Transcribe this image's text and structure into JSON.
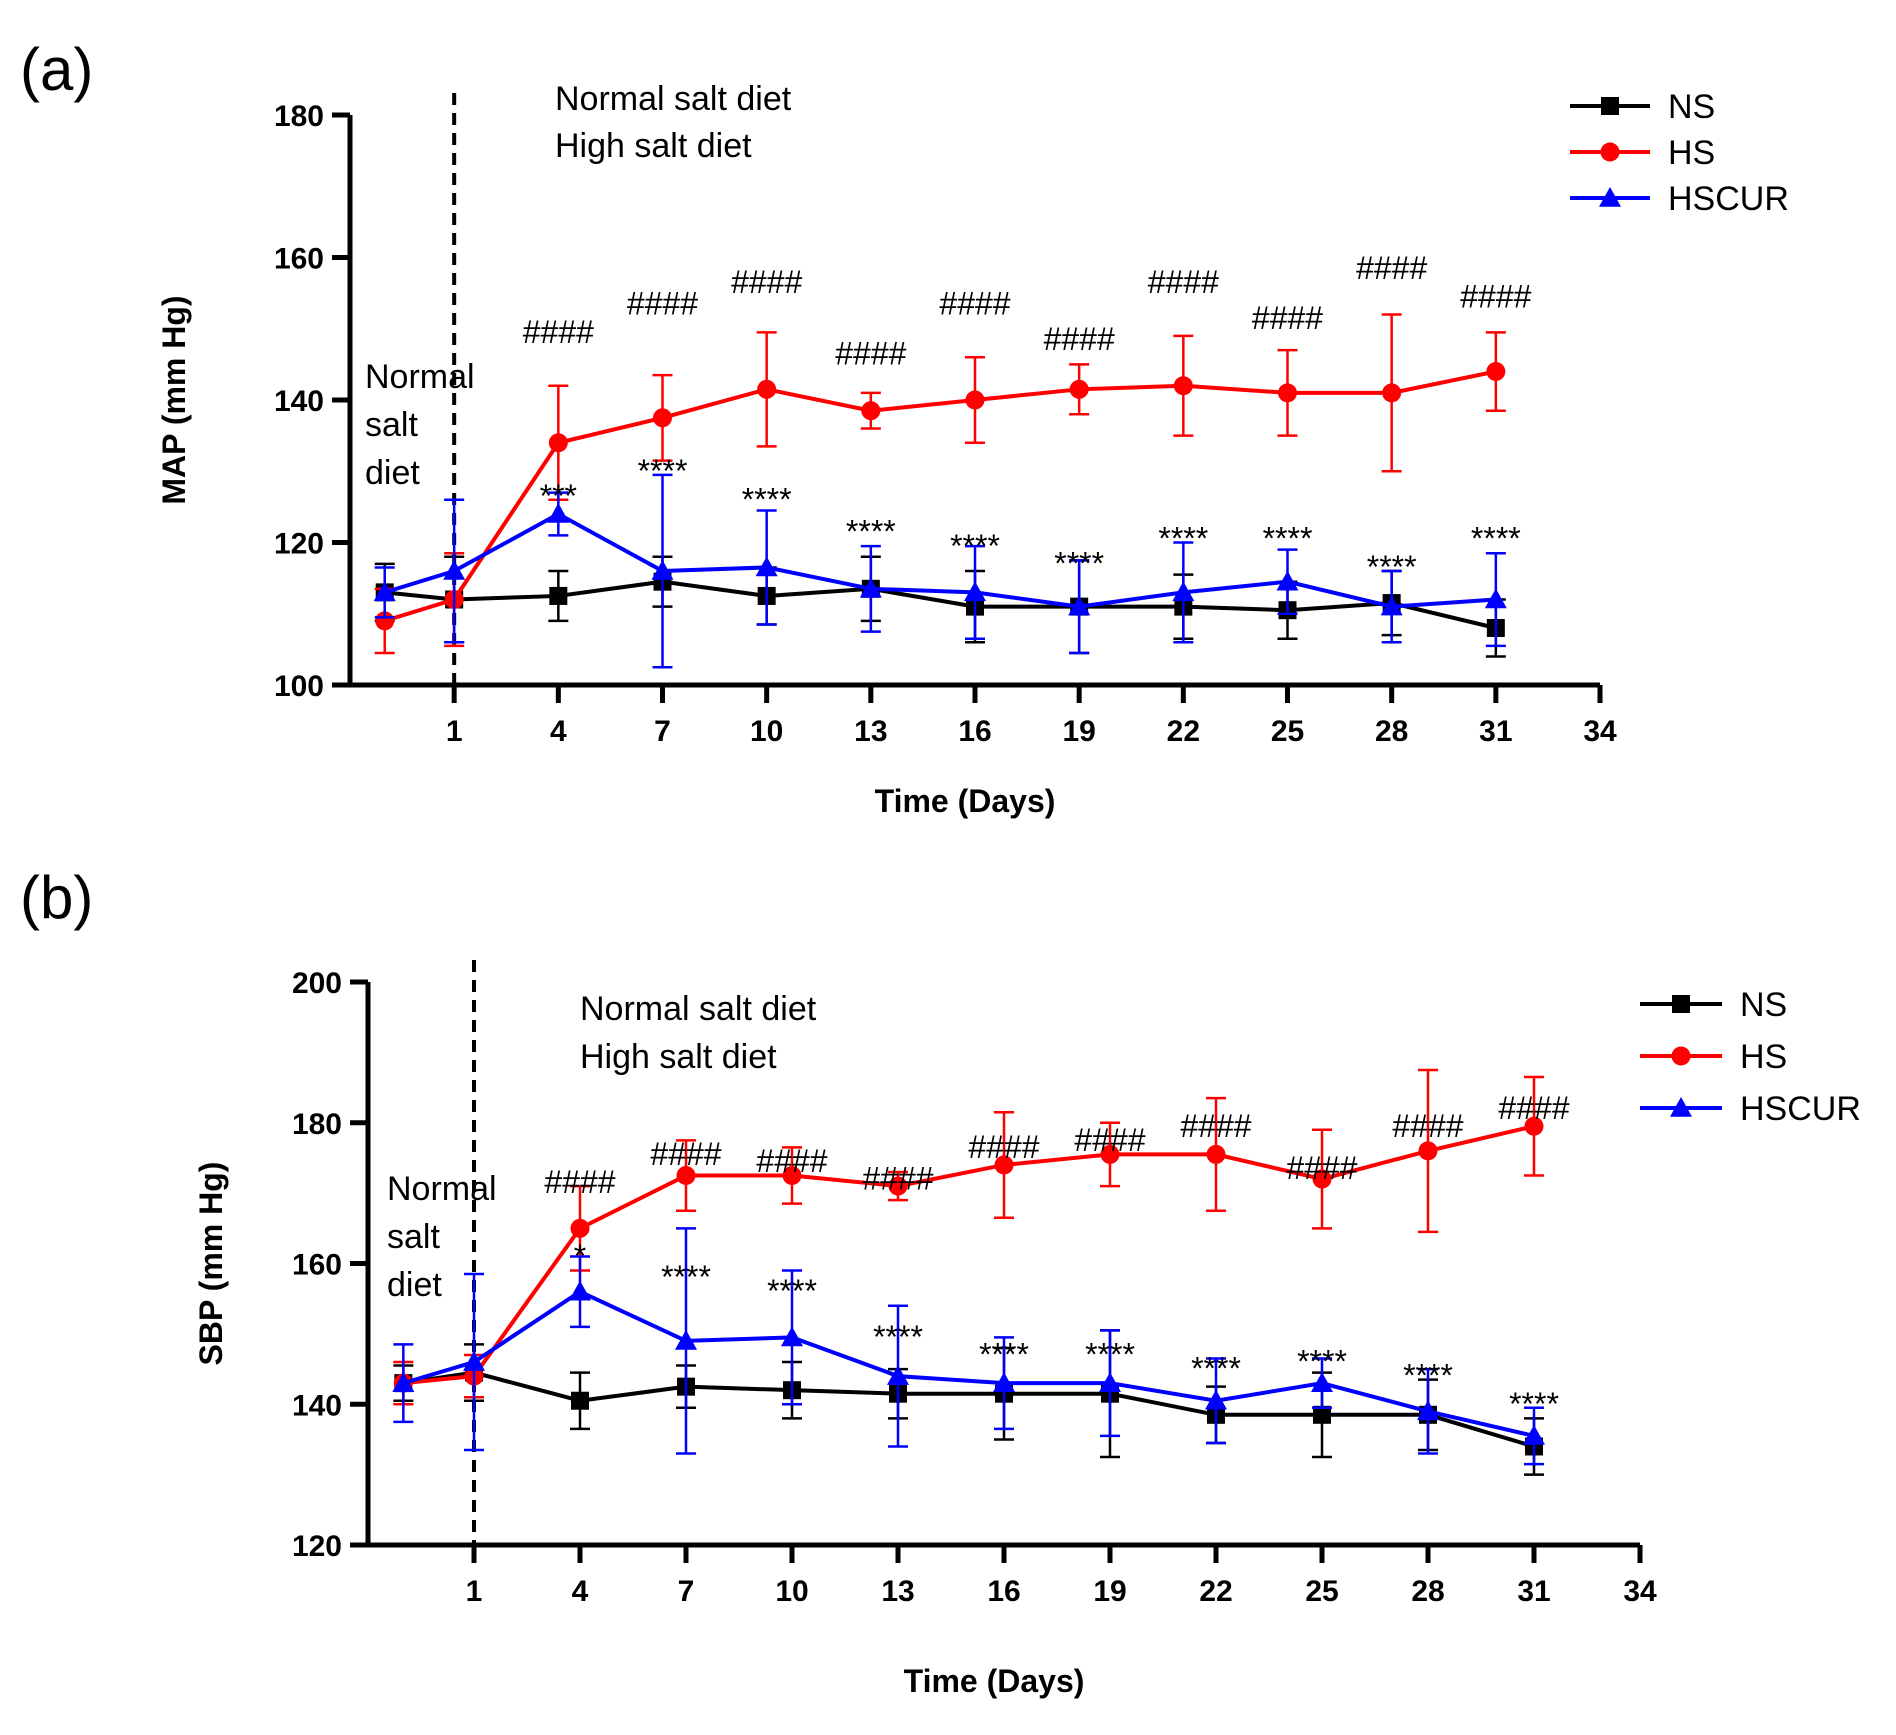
{
  "chart_data": [
    {
      "panel_label": "(a)",
      "type": "line",
      "title": "",
      "xlabel": "Time (Days)",
      "ylabel": "MAP (mm Hg)",
      "xlim": [
        -2,
        34
      ],
      "ylim": [
        100,
        180
      ],
      "xticks": [
        1,
        4,
        7,
        10,
        13,
        16,
        19,
        22,
        25,
        28,
        31,
        34
      ],
      "yticks": [
        100,
        120,
        140,
        160,
        180
      ],
      "vline_x": 1,
      "annotations": {
        "right": [
          "Normal salt diet",
          "High salt diet"
        ],
        "left": [
          "Normal",
          "salt",
          "diet"
        ]
      },
      "legend_position": "top-right",
      "x": [
        -1,
        1,
        4,
        7,
        10,
        13,
        16,
        19,
        22,
        25,
        28,
        31
      ],
      "series": [
        {
          "name": "NS",
          "color": "#000000",
          "marker": "square",
          "values": [
            113,
            112,
            112.5,
            114.5,
            112.5,
            113.5,
            111,
            111,
            111,
            110.5,
            111.5,
            108
          ],
          "errors": [
            4,
            6,
            3.5,
            3.5,
            4,
            4.5,
            5,
            6.5,
            4.5,
            4,
            4.5,
            4
          ]
        },
        {
          "name": "HS",
          "color": "#ff0000",
          "marker": "circle",
          "values": [
            109,
            112,
            134,
            137.5,
            141.5,
            138.5,
            140,
            141.5,
            142,
            141,
            141,
            144
          ],
          "errors": [
            4.5,
            6.5,
            8,
            6,
            8,
            2.5,
            6,
            3.5,
            7,
            6,
            11,
            5.5
          ]
        },
        {
          "name": "HSCUR",
          "color": "#0000ff",
          "marker": "triangle",
          "values": [
            113,
            116,
            124,
            116,
            116.5,
            113.5,
            113,
            111,
            113,
            114.5,
            111,
            112
          ],
          "errors": [
            3.5,
            10,
            3,
            13.5,
            8,
            6,
            6.5,
            6.5,
            7,
            4.5,
            5,
            6.5
          ]
        }
      ],
      "hs_sig": {
        "label": "####",
        "x": [
          4,
          7,
          10,
          13,
          16,
          19,
          22,
          25,
          28,
          31
        ],
        "y": [
          148,
          152,
          155,
          145,
          152,
          147,
          155,
          150,
          157,
          153
        ]
      },
      "hscur_sig": {
        "x": [
          4,
          7,
          10,
          13,
          16,
          19,
          22,
          25,
          28,
          31
        ],
        "labels": [
          "***",
          "****",
          "****",
          "****",
          "****",
          "****",
          "****",
          "****",
          "****",
          "****"
        ],
        "y": [
          125,
          128.5,
          124.5,
          120,
          118,
          115.5,
          119,
          119,
          115,
          119
        ]
      }
    },
    {
      "panel_label": "(b)",
      "type": "line",
      "title": "",
      "xlabel": "Time (Days)",
      "ylabel": "SBP (mm Hg)",
      "xlim": [
        -2,
        34
      ],
      "ylim": [
        120,
        200
      ],
      "xticks": [
        1,
        4,
        7,
        10,
        13,
        16,
        19,
        22,
        25,
        28,
        31,
        34
      ],
      "yticks": [
        120,
        140,
        160,
        180,
        200
      ],
      "vline_x": 1,
      "annotations": {
        "right": [
          "Normal salt diet",
          "High salt diet"
        ],
        "left": [
          "Normal",
          "salt",
          "diet"
        ]
      },
      "legend_position": "top-right",
      "x": [
        -1,
        1,
        4,
        7,
        10,
        13,
        16,
        19,
        22,
        25,
        28,
        31
      ],
      "series": [
        {
          "name": "NS",
          "color": "#000000",
          "marker": "square",
          "values": [
            143,
            144.5,
            140.5,
            142.5,
            142,
            141.5,
            141.5,
            141.5,
            138.5,
            138.5,
            138.5,
            134
          ],
          "errors": [
            2.5,
            4,
            4,
            3,
            4,
            3.5,
            6.5,
            9,
            4,
            6,
            5,
            4
          ]
        },
        {
          "name": "HS",
          "color": "#ff0000",
          "marker": "circle",
          "values": [
            143,
            144,
            165,
            172.5,
            172.5,
            171,
            174,
            175.5,
            175.5,
            172,
            176,
            179.5
          ],
          "errors": [
            3,
            3,
            6,
            5,
            4,
            2,
            7.5,
            4.5,
            8,
            7,
            11.5,
            7
          ]
        },
        {
          "name": "HSCUR",
          "color": "#0000ff",
          "marker": "triangle",
          "values": [
            143,
            146,
            156,
            149,
            149.5,
            144,
            143,
            143,
            140.5,
            143,
            139,
            135.5
          ],
          "errors": [
            5.5,
            12.5,
            5,
            16,
            9.5,
            10,
            6.5,
            7.5,
            6,
            3.5,
            6,
            4
          ]
        }
      ],
      "hs_sig": {
        "label": "####",
        "x": [
          4,
          7,
          10,
          13,
          16,
          19,
          22,
          25,
          28,
          31
        ],
        "y": [
          170,
          174,
          173,
          170.5,
          175,
          176,
          178,
          172,
          178,
          180.5
        ]
      },
      "hscur_sig": {
        "x": [
          4,
          7,
          10,
          13,
          16,
          19,
          22,
          25,
          28,
          31
        ],
        "labels": [
          "*",
          "****",
          "****",
          "****",
          "****",
          "****",
          "****",
          "****",
          "****",
          "****"
        ],
        "y": [
          159.5,
          156.5,
          154.5,
          148,
          145.5,
          145.5,
          143.5,
          144.5,
          142.5,
          138.5
        ]
      }
    }
  ]
}
